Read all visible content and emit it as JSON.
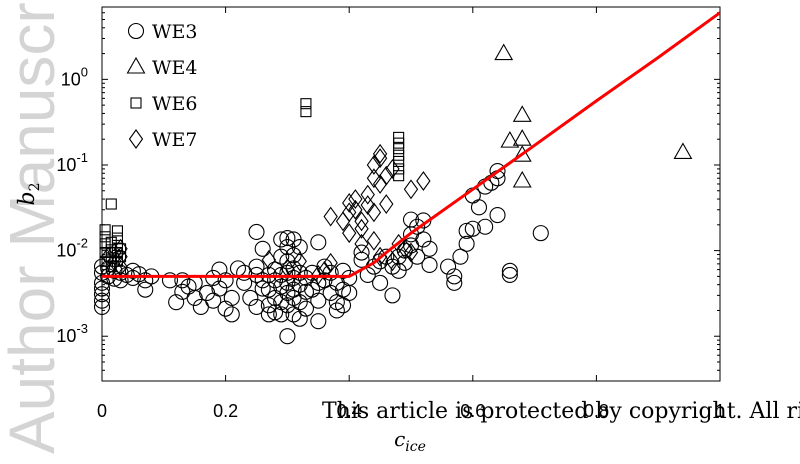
{
  "watermark": {
    "side_text": "Author Manuscript",
    "bottom_text": "This article is protected by copyright. All rights reserved"
  },
  "colors": {
    "fit_line": "#ff0000",
    "markers": "#000000",
    "watermark": "#d4d4d4"
  },
  "chart_data": {
    "type": "scatter",
    "title": "",
    "xlabel_main": "c",
    "xlabel_sub": "ice",
    "ylabel_main": "b",
    "ylabel_sub": "2",
    "xlim": [
      0,
      1
    ],
    "ylim": [
      0.0003,
      7
    ],
    "yscale": "log",
    "grid": false,
    "legend_position": "top-left",
    "x_ticks": [
      {
        "value": 0,
        "label": "0"
      },
      {
        "value": 0.2,
        "label": "0.2"
      },
      {
        "value": 0.4,
        "label": "0.4"
      },
      {
        "value": 0.6,
        "label": "0.6"
      },
      {
        "value": 0.8,
        "label": "0.8"
      },
      {
        "value": 1,
        "label": "1"
      }
    ],
    "y_ticks": [
      {
        "value": 0.001,
        "base": "10",
        "exp": "-3"
      },
      {
        "value": 0.01,
        "base": "10",
        "exp": "-2"
      },
      {
        "value": 0.1,
        "base": "10",
        "exp": "-1"
      },
      {
        "value": 1,
        "base": "10",
        "exp": "0"
      }
    ],
    "series": [
      {
        "name": "WE3",
        "marker": "circle",
        "points": [
          [
            0.0,
            0.0022
          ],
          [
            0.0,
            0.0026
          ],
          [
            0.0,
            0.0031
          ],
          [
            0.0,
            0.0036
          ],
          [
            0.0,
            0.0042
          ],
          [
            0.0,
            0.0055
          ],
          [
            0.0,
            0.0065
          ],
          [
            0.01,
            0.005
          ],
          [
            0.01,
            0.0062
          ],
          [
            0.02,
            0.0047
          ],
          [
            0.02,
            0.0058
          ],
          [
            0.03,
            0.0045
          ],
          [
            0.03,
            0.0055
          ],
          [
            0.04,
            0.0052
          ],
          [
            0.05,
            0.0048
          ],
          [
            0.05,
            0.0058
          ],
          [
            0.06,
            0.0053
          ],
          [
            0.07,
            0.0035
          ],
          [
            0.07,
            0.0045
          ],
          [
            0.08,
            0.005
          ],
          [
            0.11,
            0.0045
          ],
          [
            0.12,
            0.0025
          ],
          [
            0.13,
            0.0033
          ],
          [
            0.13,
            0.0045
          ],
          [
            0.14,
            0.0038
          ],
          [
            0.15,
            0.0028
          ],
          [
            0.15,
            0.0042
          ],
          [
            0.16,
            0.0022
          ],
          [
            0.17,
            0.0032
          ],
          [
            0.18,
            0.0026
          ],
          [
            0.18,
            0.0048
          ],
          [
            0.19,
            0.006
          ],
          [
            0.19,
            0.0036
          ],
          [
            0.2,
            0.0021
          ],
          [
            0.2,
            0.0045
          ],
          [
            0.21,
            0.0018
          ],
          [
            0.21,
            0.0028
          ],
          [
            0.22,
            0.0062
          ],
          [
            0.23,
            0.0042
          ],
          [
            0.23,
            0.0055
          ],
          [
            0.24,
            0.0028
          ],
          [
            0.25,
            0.0022
          ],
          [
            0.25,
            0.0052
          ],
          [
            0.25,
            0.0065
          ],
          [
            0.25,
            0.0165
          ],
          [
            0.26,
            0.0105
          ],
          [
            0.26,
            0.0045
          ],
          [
            0.26,
            0.0036
          ],
          [
            0.27,
            0.0052
          ],
          [
            0.27,
            0.0035
          ],
          [
            0.27,
            0.0023
          ],
          [
            0.27,
            0.0018
          ],
          [
            0.28,
            0.006
          ],
          [
            0.28,
            0.0045
          ],
          [
            0.28,
            0.0028
          ],
          [
            0.28,
            0.0019
          ],
          [
            0.29,
            0.0135
          ],
          [
            0.29,
            0.0085
          ],
          [
            0.29,
            0.0052
          ],
          [
            0.29,
            0.0038
          ],
          [
            0.29,
            0.0025
          ],
          [
            0.29,
            0.0018
          ],
          [
            0.3,
            0.014
          ],
          [
            0.3,
            0.011
          ],
          [
            0.3,
            0.0075
          ],
          [
            0.3,
            0.0055
          ],
          [
            0.3,
            0.0042
          ],
          [
            0.3,
            0.0032
          ],
          [
            0.3,
            0.0023
          ],
          [
            0.3,
            0.001
          ],
          [
            0.31,
            0.0135
          ],
          [
            0.31,
            0.0088
          ],
          [
            0.31,
            0.0062
          ],
          [
            0.31,
            0.0048
          ],
          [
            0.31,
            0.0035
          ],
          [
            0.31,
            0.0028
          ],
          [
            0.31,
            0.0018
          ],
          [
            0.32,
            0.011
          ],
          [
            0.32,
            0.0055
          ],
          [
            0.32,
            0.004
          ],
          [
            0.32,
            0.0025
          ],
          [
            0.32,
            0.0016
          ],
          [
            0.33,
            0.0048
          ],
          [
            0.33,
            0.0033
          ],
          [
            0.33,
            0.0021
          ],
          [
            0.34,
            0.0055
          ],
          [
            0.34,
            0.0035
          ],
          [
            0.35,
            0.0125
          ],
          [
            0.35,
            0.0042
          ],
          [
            0.35,
            0.0026
          ],
          [
            0.35,
            0.0015
          ],
          [
            0.36,
            0.0065
          ],
          [
            0.36,
            0.0045
          ],
          [
            0.37,
            0.0055
          ],
          [
            0.37,
            0.0032
          ],
          [
            0.38,
            0.0042
          ],
          [
            0.38,
            0.0025
          ],
          [
            0.38,
            0.002
          ],
          [
            0.39,
            0.0058
          ],
          [
            0.39,
            0.0035
          ],
          [
            0.39,
            0.0023
          ],
          [
            0.4,
            0.0048
          ],
          [
            0.4,
            0.0032
          ],
          [
            0.42,
            0.0095
          ],
          [
            0.42,
            0.0078
          ],
          [
            0.43,
            0.0052
          ],
          [
            0.44,
            0.0065
          ],
          [
            0.45,
            0.0075
          ],
          [
            0.45,
            0.0042
          ],
          [
            0.46,
            0.0085
          ],
          [
            0.47,
            0.0065
          ],
          [
            0.47,
            0.003
          ],
          [
            0.48,
            0.0058
          ],
          [
            0.48,
            0.0085
          ],
          [
            0.49,
            0.01
          ],
          [
            0.49,
            0.0072
          ],
          [
            0.5,
            0.0115
          ],
          [
            0.5,
            0.0155
          ],
          [
            0.5,
            0.023
          ],
          [
            0.51,
            0.019
          ],
          [
            0.51,
            0.0085
          ],
          [
            0.52,
            0.0135
          ],
          [
            0.52,
            0.0225
          ],
          [
            0.53,
            0.0105
          ],
          [
            0.53,
            0.0068
          ],
          [
            0.56,
            0.0065
          ],
          [
            0.57,
            0.0042
          ],
          [
            0.57,
            0.005
          ],
          [
            0.58,
            0.0085
          ],
          [
            0.59,
            0.012
          ],
          [
            0.59,
            0.017
          ],
          [
            0.6,
            0.018
          ],
          [
            0.6,
            0.044
          ],
          [
            0.61,
            0.032
          ],
          [
            0.62,
            0.056
          ],
          [
            0.62,
            0.019
          ],
          [
            0.63,
            0.062
          ],
          [
            0.64,
            0.07
          ],
          [
            0.64,
            0.085
          ],
          [
            0.64,
            0.026
          ],
          [
            0.66,
            0.0052
          ],
          [
            0.66,
            0.0058
          ],
          [
            0.71,
            0.016
          ]
        ]
      },
      {
        "name": "WE4",
        "marker": "triangle",
        "points": [
          [
            0.65,
            2.0
          ],
          [
            0.66,
            0.19
          ],
          [
            0.68,
            0.38
          ],
          [
            0.68,
            0.2
          ],
          [
            0.68,
            0.13
          ],
          [
            0.68,
            0.065
          ],
          [
            0.94,
            0.14
          ]
        ]
      },
      {
        "name": "WE6",
        "marker": "square",
        "points": [
          [
            0.005,
            0.0075
          ],
          [
            0.005,
            0.0095
          ],
          [
            0.005,
            0.012
          ],
          [
            0.005,
            0.0145
          ],
          [
            0.005,
            0.0175
          ],
          [
            0.015,
            0.0065
          ],
          [
            0.015,
            0.0082
          ],
          [
            0.015,
            0.0102
          ],
          [
            0.015,
            0.0125
          ],
          [
            0.015,
            0.035
          ],
          [
            0.025,
            0.0075
          ],
          [
            0.025,
            0.0095
          ],
          [
            0.025,
            0.0115
          ],
          [
            0.025,
            0.014
          ],
          [
            0.025,
            0.017
          ],
          [
            0.03,
            0.0085
          ],
          [
            0.03,
            0.0105
          ],
          [
            0.33,
            0.42
          ],
          [
            0.33,
            0.52
          ],
          [
            0.48,
            0.075
          ],
          [
            0.48,
            0.09
          ],
          [
            0.48,
            0.11
          ],
          [
            0.48,
            0.13
          ],
          [
            0.48,
            0.155
          ],
          [
            0.48,
            0.18
          ],
          [
            0.48,
            0.21
          ]
        ]
      },
      {
        "name": "WE7",
        "marker": "diamond",
        "points": [
          [
            0.01,
            0.0085
          ],
          [
            0.02,
            0.0075
          ],
          [
            0.02,
            0.0095
          ],
          [
            0.03,
            0.0065
          ],
          [
            0.03,
            0.0085
          ],
          [
            0.03,
            0.0105
          ],
          [
            0.27,
            0.0078
          ],
          [
            0.3,
            0.0062
          ],
          [
            0.32,
            0.0075
          ],
          [
            0.35,
            0.0052
          ],
          [
            0.36,
            0.0058
          ],
          [
            0.37,
            0.0072
          ],
          [
            0.37,
            0.025
          ],
          [
            0.39,
            0.022
          ],
          [
            0.4,
            0.016
          ],
          [
            0.4,
            0.028
          ],
          [
            0.4,
            0.036
          ],
          [
            0.41,
            0.03
          ],
          [
            0.41,
            0.04
          ],
          [
            0.42,
            0.012
          ],
          [
            0.42,
            0.018
          ],
          [
            0.42,
            0.022
          ],
          [
            0.43,
            0.034
          ],
          [
            0.43,
            0.045
          ],
          [
            0.44,
            0.013
          ],
          [
            0.44,
            0.028
          ],
          [
            0.44,
            0.1
          ],
          [
            0.44,
            0.07
          ],
          [
            0.45,
            0.12
          ],
          [
            0.45,
            0.135
          ],
          [
            0.45,
            0.0085
          ],
          [
            0.45,
            0.06
          ],
          [
            0.46,
            0.035
          ],
          [
            0.46,
            0.075
          ],
          [
            0.47,
            0.09
          ],
          [
            0.47,
            0.0075
          ],
          [
            0.48,
            0.012
          ],
          [
            0.49,
            0.0105
          ],
          [
            0.5,
            0.052
          ],
          [
            0.5,
            0.0095
          ],
          [
            0.52,
            0.065
          ]
        ]
      },
      {
        "name": "",
        "type": "line",
        "color": "#ff0000",
        "points": [
          [
            0,
            0.005
          ],
          [
            0.4,
            0.005
          ],
          [
            0.44,
            0.0072
          ],
          [
            0.46,
            0.0095
          ],
          [
            0.5,
            0.016
          ],
          [
            0.6,
            0.052
          ],
          [
            0.7,
            0.17
          ],
          [
            0.8,
            0.56
          ],
          [
            0.9,
            1.8
          ],
          [
            1,
            6.0
          ]
        ]
      }
    ]
  }
}
